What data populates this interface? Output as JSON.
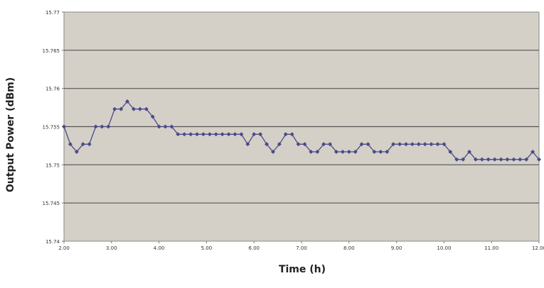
{
  "chart_data": {
    "type": "line",
    "title": "",
    "xlabel": "Time (h)",
    "ylabel": "Output Power (dBm)",
    "xlim": [
      2.0,
      12.0
    ],
    "ylim": [
      15.74,
      15.77
    ],
    "x_ticks": [
      2,
      3,
      4,
      5,
      6,
      7,
      8,
      9,
      10,
      11,
      12
    ],
    "x_tick_labels": [
      "2.00",
      "3.00",
      "4.00",
      "5.00",
      "6.00",
      "7.00",
      "8.00",
      "9.00",
      "10.00",
      "11.00",
      "12.00"
    ],
    "y_ticks": [
      15.74,
      15.745,
      15.75,
      15.755,
      15.76,
      15.765,
      15.77
    ],
    "y_tick_labels": [
      "15.74",
      "15.745",
      "15.75",
      "15.755",
      "15.76",
      "15.765",
      "15.77"
    ],
    "grid": "horizontal",
    "plot_background": "#D4D0C8",
    "line_color": "#4A4A8A",
    "marker": "diamond",
    "series": [
      {
        "x": [
          2.0,
          2.133,
          2.267,
          2.4,
          2.533,
          2.667,
          2.8,
          2.933,
          3.067,
          3.2,
          3.333,
          3.467,
          3.6,
          3.733,
          3.867,
          4.0,
          4.133,
          4.267,
          4.4,
          4.533,
          4.667,
          4.8,
          4.933,
          5.067,
          5.2,
          5.333,
          5.467,
          5.6,
          5.733,
          5.867,
          6.0,
          6.133,
          6.267,
          6.4,
          6.533,
          6.667,
          6.8,
          6.933,
          7.067,
          7.2,
          7.333,
          7.467,
          7.6,
          7.733,
          7.867,
          8.0,
          8.133,
          8.267,
          8.4,
          8.533,
          8.667,
          8.8,
          8.933,
          9.067,
          9.2,
          9.333,
          9.467,
          9.6,
          9.733,
          9.867,
          10.0,
          10.133,
          10.267,
          10.4,
          10.533,
          10.667,
          10.8,
          10.933,
          11.067,
          11.2,
          11.333,
          11.467,
          11.6,
          11.733,
          11.867,
          12.0
        ],
        "values": [
          15.755,
          15.7527,
          15.7517,
          15.7527,
          15.7527,
          15.755,
          15.755,
          15.755,
          15.7573,
          15.7573,
          15.7583,
          15.7573,
          15.7573,
          15.7573,
          15.7563,
          15.755,
          15.755,
          15.755,
          15.754,
          15.754,
          15.754,
          15.754,
          15.754,
          15.754,
          15.754,
          15.754,
          15.754,
          15.754,
          15.754,
          15.7527,
          15.754,
          15.754,
          15.7527,
          15.7517,
          15.7527,
          15.754,
          15.754,
          15.7527,
          15.7527,
          15.7517,
          15.7517,
          15.7527,
          15.7527,
          15.7517,
          15.7517,
          15.7517,
          15.7517,
          15.7527,
          15.7527,
          15.7517,
          15.7517,
          15.7517,
          15.7527,
          15.7527,
          15.7527,
          15.7527,
          15.7527,
          15.7527,
          15.7527,
          15.7527,
          15.7527,
          15.7517,
          15.7507,
          15.7507,
          15.7517,
          15.7507,
          15.7507,
          15.7507,
          15.7507,
          15.7507,
          15.7507,
          15.7507,
          15.7507,
          15.7507,
          15.7517,
          15.7507
        ]
      }
    ]
  }
}
